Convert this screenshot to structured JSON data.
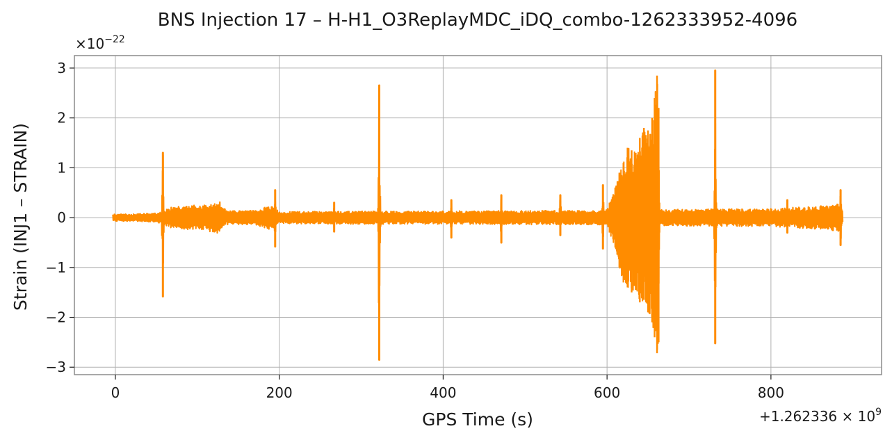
{
  "chart_data": {
    "type": "line",
    "title": "BNS Injection 17 – H-H1_O3ReplayMDC_iDQ_combo-1262333952-4096",
    "xlabel": "GPS Time (s)",
    "ylabel": "Strain (INJ1 – STRAIN)",
    "x_offset_label": {
      "prefix": "+1.262336 × 10",
      "exponent": "9"
    },
    "y_scale_label": {
      "prefix": "×10",
      "exponent": "−22"
    },
    "xlim": [
      -50,
      935
    ],
    "ylim": [
      -3.15,
      3.25
    ],
    "x_ticks": [
      0,
      200,
      400,
      600,
      800
    ],
    "x_tick_labels": [
      "0",
      "200",
      "400",
      "600",
      "800"
    ],
    "y_ticks": [
      -3,
      -2,
      -1,
      0,
      1,
      2,
      3
    ],
    "y_tick_labels": [
      "−3",
      "−2",
      "−1",
      "0",
      "1",
      "2",
      "3"
    ],
    "grid": true,
    "line_color": "#ff8c00",
    "x_range": [
      -3,
      888
    ],
    "baseline_envelope": [
      [
        -3,
        0.07
      ],
      [
        20,
        0.07
      ],
      [
        50,
        0.09
      ],
      [
        56,
        0.12
      ],
      [
        65,
        0.2
      ],
      [
        90,
        0.24
      ],
      [
        110,
        0.26
      ],
      [
        128,
        0.32
      ],
      [
        135,
        0.14
      ],
      [
        170,
        0.14
      ],
      [
        185,
        0.22
      ],
      [
        190,
        0.24
      ],
      [
        200,
        0.12
      ],
      [
        300,
        0.13
      ],
      [
        400,
        0.13
      ],
      [
        500,
        0.14
      ],
      [
        590,
        0.14
      ],
      [
        600,
        0.16
      ],
      [
        606,
        0.3
      ],
      [
        660,
        0.25
      ],
      [
        665,
        0.16
      ],
      [
        720,
        0.17
      ],
      [
        800,
        0.18
      ],
      [
        850,
        0.22
      ],
      [
        885,
        0.28
      ],
      [
        888,
        0.1
      ]
    ],
    "bursts": [
      {
        "t": 58,
        "max": 1.3,
        "min": -1.58
      },
      {
        "t": 195,
        "max": 0.55,
        "min": -0.58
      },
      {
        "t": 267,
        "max": 0.3,
        "min": -0.28
      },
      {
        "t": 322,
        "max": 2.65,
        "min": -2.85
      },
      {
        "t": 410,
        "max": 0.35,
        "min": -0.4
      },
      {
        "t": 471,
        "max": 0.45,
        "min": -0.5
      },
      {
        "t": 543,
        "max": 0.45,
        "min": -0.35
      },
      {
        "t": 595,
        "max": 0.65,
        "min": -0.62
      },
      {
        "t": 732,
        "max": 2.95,
        "min": -2.52
      },
      {
        "t": 820,
        "max": 0.35,
        "min": -0.3
      },
      {
        "t": 885,
        "max": 0.55,
        "min": -0.55
      }
    ],
    "chirp": {
      "start": 603,
      "end": 664,
      "envelope": [
        [
          603,
          0.3
        ],
        [
          610,
          0.6
        ],
        [
          615,
          0.9
        ],
        [
          620,
          1.1
        ],
        [
          625,
          1.4
        ],
        [
          630,
          1.35
        ],
        [
          635,
          1.3
        ],
        [
          640,
          1.6
        ],
        [
          645,
          1.8
        ],
        [
          650,
          1.75
        ],
        [
          655,
          2.0
        ],
        [
          658,
          2.4
        ],
        [
          661,
          2.85
        ],
        [
          663,
          2.2
        ],
        [
          664,
          0.3
        ]
      ],
      "negative_envelope": [
        [
          603,
          -0.3
        ],
        [
          610,
          -0.6
        ],
        [
          615,
          -1.0
        ],
        [
          620,
          -1.3
        ],
        [
          625,
          -1.4
        ],
        [
          630,
          -1.5
        ],
        [
          635,
          -1.45
        ],
        [
          640,
          -1.7
        ],
        [
          645,
          -1.65
        ],
        [
          650,
          -1.9
        ],
        [
          655,
          -2.1
        ],
        [
          658,
          -2.4
        ],
        [
          661,
          -2.72
        ],
        [
          663,
          -2.5
        ],
        [
          664,
          -0.3
        ]
      ]
    }
  }
}
